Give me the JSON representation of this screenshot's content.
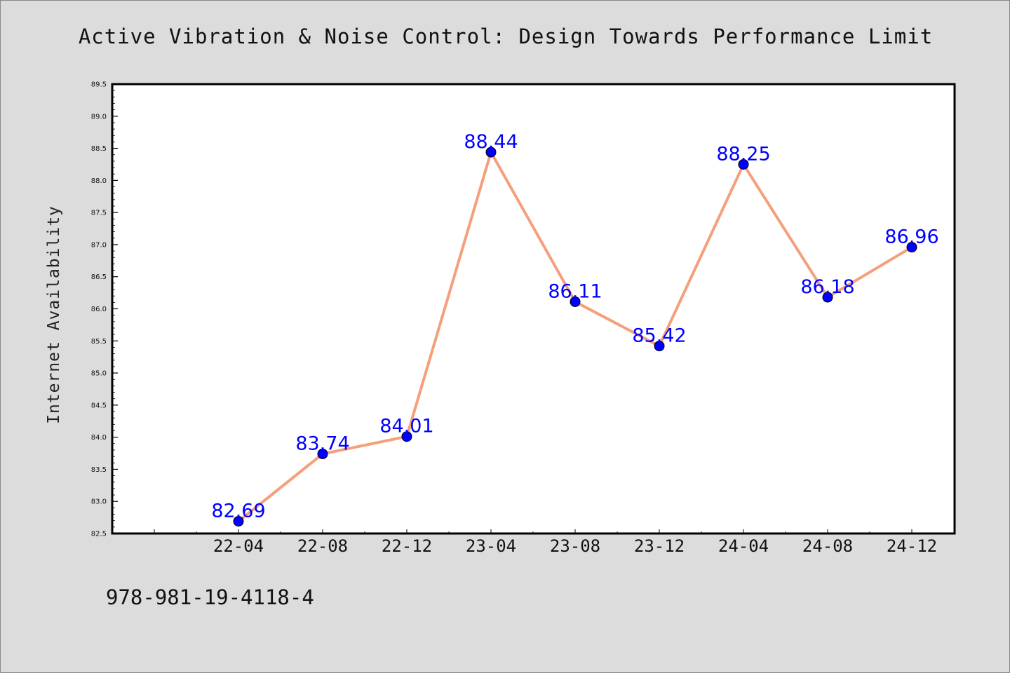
{
  "chart_data": {
    "type": "line",
    "title": "Active Vibration & Noise Control: Design Towards Performance Limit",
    "xlabel": "",
    "ylabel": "Internet Availability",
    "categories": [
      "22-04",
      "22-08",
      "22-12",
      "23-04",
      "23-08",
      "23-12",
      "24-04",
      "24-08",
      "24-12"
    ],
    "series": [
      {
        "values": [
          82.69,
          83.74,
          84.01,
          88.44,
          86.11,
          85.42,
          88.25,
          86.18,
          86.96
        ],
        "line_color": "#f4a07c",
        "marker_color": "#0000ff",
        "label_color": "#0000ff"
      }
    ],
    "data_labels": [
      "82.69",
      "83.74",
      "84.01",
      "88.44",
      "86.11",
      "85.42",
      "88.25",
      "86.18",
      "86.96"
    ],
    "ylim": [
      82.5,
      89.5
    ],
    "yticks": [
      "82.5",
      "83.0",
      "83.5",
      "84.0",
      "84.5",
      "85.0",
      "85.5",
      "86.0",
      "86.5",
      "87.0",
      "87.5",
      "88.0",
      "88.5",
      "89.0",
      "89.5"
    ],
    "grid": false,
    "legend": "none"
  },
  "footer_text": "978-981-19-4118-4",
  "colors": {
    "background": "#dcdcdc",
    "plot_area": "#ffffff",
    "axis": "#000000"
  }
}
